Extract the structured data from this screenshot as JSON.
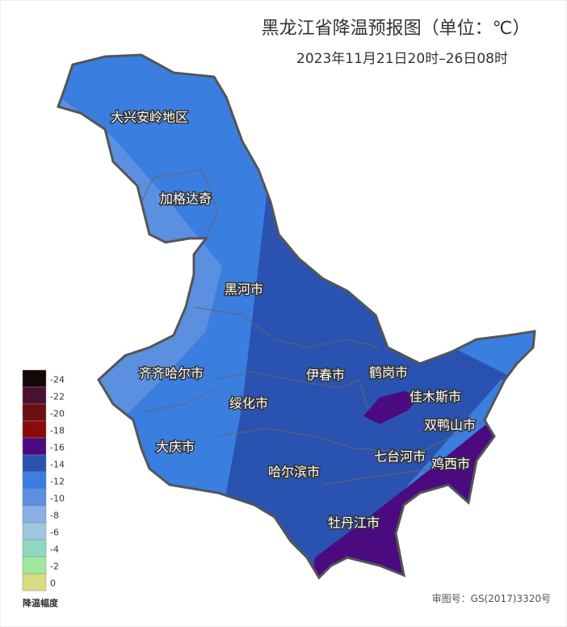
{
  "header": {
    "title": "黑龙江省降温预报图（单位：℃）",
    "subtitle": "2023年11月21日20时–26日08时"
  },
  "regions": [
    "大兴安岭地区",
    "加格达奇",
    "黑河市",
    "齐齐哈尔市",
    "伊春市",
    "鹤岗市",
    "佳木斯市",
    "绥化市",
    "双鸭山市",
    "大庆市",
    "七台河市",
    "鸡西市",
    "哈尔滨市",
    "牡丹江市"
  ],
  "legend": {
    "title": "降温幅度",
    "items": [
      {
        "value": -24,
        "color": "#160606"
      },
      {
        "value": -22,
        "color": "#4a1030"
      },
      {
        "value": -20,
        "color": "#6a1010"
      },
      {
        "value": -18,
        "color": "#8b0a0a"
      },
      {
        "value": -16,
        "color": "#4b0a80"
      },
      {
        "value": -14,
        "color": "#2a52b0"
      },
      {
        "value": -12,
        "color": "#3a7ee0"
      },
      {
        "value": -10,
        "color": "#5b8fe0"
      },
      {
        "value": -8,
        "color": "#8ab0e8"
      },
      {
        "value": -6,
        "color": "#9ec8e0"
      },
      {
        "value": -4,
        "color": "#90d8c0"
      },
      {
        "value": -2,
        "color": "#a0e8a0"
      },
      {
        "value": 0,
        "color": "#d8dc80"
      }
    ]
  },
  "footer": {
    "map_number": "审图号：GS(2017)3320号"
  }
}
